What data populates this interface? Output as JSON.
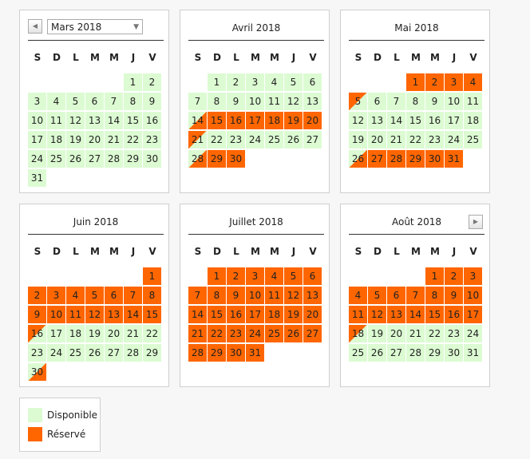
{
  "weekdays": [
    "S",
    "D",
    "L",
    "M",
    "M",
    "J",
    "V"
  ],
  "select": {
    "value": "Mars 2018",
    "arrow": "▼"
  },
  "nav": {
    "prev": "◀",
    "next": "▶"
  },
  "months": [
    {
      "title": "Mars 2018",
      "lead": 5,
      "days": 31,
      "states": {}
    },
    {
      "title": "Avril 2018",
      "lead": 1,
      "days": 30,
      "states": {
        "14": "dep",
        "15": "booked",
        "16": "booked",
        "17": "booked",
        "18": "booked",
        "19": "booked",
        "20": "booked",
        "21": "arr",
        "28": "dep",
        "29": "booked",
        "30": "booked"
      }
    },
    {
      "title": "Mai 2018",
      "lead": 3,
      "days": 31,
      "states": {
        "1": "booked",
        "2": "booked",
        "3": "booked",
        "4": "booked",
        "5": "arr",
        "26": "dep",
        "27": "booked",
        "28": "booked",
        "29": "booked",
        "30": "booked",
        "31": "booked"
      }
    },
    {
      "title": "Juin 2018",
      "lead": 6,
      "days": 30,
      "states": {
        "1": "booked",
        "2": "booked",
        "3": "booked",
        "4": "booked",
        "5": "booked",
        "6": "booked",
        "7": "booked",
        "8": "booked",
        "9": "booked",
        "10": "booked",
        "11": "booked",
        "12": "booked",
        "13": "booked",
        "14": "booked",
        "15": "booked",
        "16": "arr",
        "30": "dep"
      }
    },
    {
      "title": "Juillet 2018",
      "lead": 1,
      "days": 31,
      "states": {},
      "default": "booked"
    },
    {
      "title": "Août 2018",
      "lead": 4,
      "days": 31,
      "states": {
        "1": "booked",
        "2": "booked",
        "3": "booked",
        "4": "booked",
        "5": "booked",
        "6": "booked",
        "7": "booked",
        "8": "booked",
        "9": "booked",
        "10": "booked",
        "11": "booked",
        "12": "booked",
        "13": "booked",
        "14": "booked",
        "15": "booked",
        "16": "booked",
        "17": "booked",
        "18": "arr"
      }
    }
  ],
  "legend": [
    {
      "label": "Disponible",
      "color": "#dcfbd2"
    },
    {
      "label": "Réservé",
      "color": "#ff6600"
    }
  ],
  "colors": {
    "free": "#dcfbd2",
    "booked": "#ff6600"
  }
}
